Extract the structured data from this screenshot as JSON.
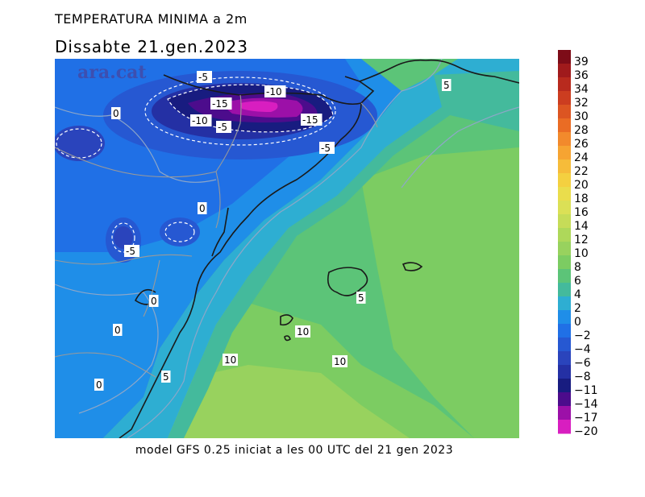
{
  "header": {
    "title": "TEMPERATURA MINIMA a 2m",
    "date_label": "Dissabte   21.gen.2023"
  },
  "footer": {
    "model_text": "model GFS 0.25 iniciat a les 00 UTC del 21 gen 2023"
  },
  "map": {
    "watermark": "ara.cat",
    "contour_labels": [
      {
        "text": "-5",
        "id": "pyr-w"
      },
      {
        "text": "-10",
        "id": "pyr-top"
      },
      {
        "text": "-15",
        "id": "pyr-left"
      },
      {
        "text": "-10",
        "id": "pyr-sw"
      },
      {
        "text": "-5",
        "id": "pyr-s"
      },
      {
        "text": "-15",
        "id": "pyr-right"
      },
      {
        "text": "-5",
        "id": "pyr-se"
      },
      {
        "text": "0",
        "id": "zero-nw"
      },
      {
        "text": "0",
        "id": "zero-mid"
      },
      {
        "text": "-5",
        "id": "iberia-cold"
      },
      {
        "text": "0",
        "id": "zero-coast"
      },
      {
        "text": "0",
        "id": "zero-w"
      },
      {
        "text": "0",
        "id": "zero-sw"
      },
      {
        "text": "5",
        "id": "five-ne"
      },
      {
        "text": "5",
        "id": "five-mallorca"
      },
      {
        "text": "5",
        "id": "five-s"
      },
      {
        "text": "10",
        "id": "ten-ibiza"
      },
      {
        "text": "10",
        "id": "ten-sw"
      },
      {
        "text": "10",
        "id": "ten-s"
      }
    ]
  },
  "legend": {
    "labels": [
      "39",
      "36",
      "34",
      "32",
      "30",
      "28",
      "26",
      "24",
      "22",
      "20",
      "18",
      "16",
      "14",
      "12",
      "10",
      "8",
      "6",
      "4",
      "2",
      "0",
      "−2",
      "−4",
      "−6",
      "−8",
      "−11",
      "−14",
      "−17",
      "−20"
    ],
    "colors": [
      "#7d0c18",
      "#a01a1c",
      "#b82a1e",
      "#cc3d20",
      "#dc5522",
      "#ea6c24",
      "#f28a2c",
      "#f6a432",
      "#f6bc3a",
      "#f4d040",
      "#eadd4c",
      "#dbe056",
      "#c6dc58",
      "#aed85a",
      "#98d25e",
      "#7ccc62",
      "#5cc478",
      "#44ba9c",
      "#2eaed2",
      "#1f8ee8",
      "#2070e6",
      "#2658d2",
      "#2a44bc",
      "#2430a4",
      "#181c80",
      "#4c0c8c",
      "#9c10a8",
      "#d81ec0"
    ]
  }
}
